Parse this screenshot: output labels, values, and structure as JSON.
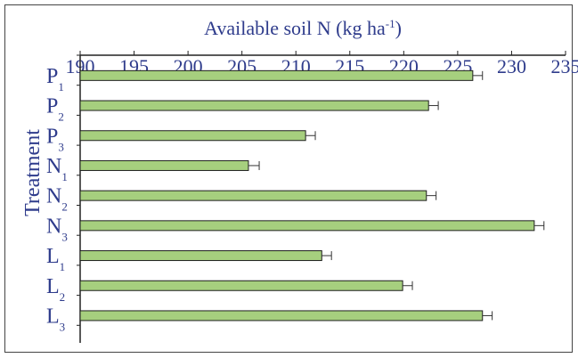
{
  "chart_data": {
    "type": "bar",
    "orientation": "horizontal",
    "title": "Available soil N (kg ha⁻¹)",
    "xlabel": "Available soil N (kg ha⁻¹)",
    "ylabel": "Treatment",
    "xlim": [
      190,
      235
    ],
    "x_ticks": [
      "190",
      "195",
      "200",
      "205",
      "210",
      "215",
      "220",
      "225",
      "230",
      "235"
    ],
    "categories": [
      {
        "base": "P",
        "sub": "1"
      },
      {
        "base": "P",
        "sub": "2"
      },
      {
        "base": "P",
        "sub": "3"
      },
      {
        "base": "N",
        "sub": "1"
      },
      {
        "base": "N",
        "sub": "2"
      },
      {
        "base": "N",
        "sub": "3"
      },
      {
        "base": "L",
        "sub": "1"
      },
      {
        "base": "L",
        "sub": "2"
      },
      {
        "base": "L",
        "sub": "3"
      }
    ],
    "values": [
      226.4,
      222.3,
      210.9,
      205.6,
      222.1,
      232.1,
      212.4,
      219.9,
      227.3
    ],
    "errors": [
      0.9,
      0.9,
      0.9,
      1.0,
      0.9,
      0.9,
      0.9,
      0.9,
      0.9
    ],
    "grid": false,
    "legend": "none",
    "colors": {
      "bar_fill": "#a6cf7e",
      "bar_stroke": "#1e1e1e",
      "text": "#2f3c8c",
      "axis": "#222222",
      "frame": "#444444"
    }
  }
}
